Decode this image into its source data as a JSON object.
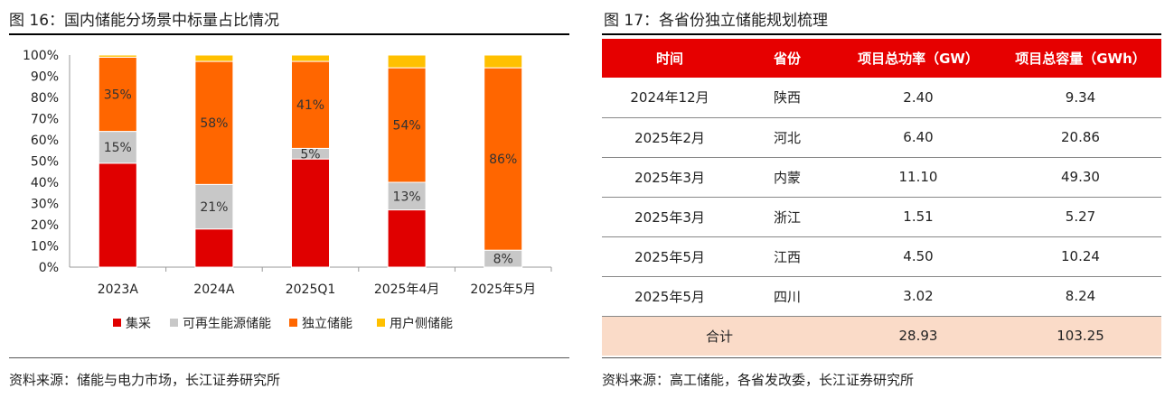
{
  "left_panel": {
    "title": "图 16：国内储能分场景中标量占比情况",
    "source": "资料来源：储能与电力市场，长江证券研究所"
  },
  "right_panel": {
    "title": "图 17：各省份独立储能规划梳理",
    "source": "资料来源：高工储能，各省发改委，长江证券研究所",
    "table": {
      "headers": [
        "时间",
        "省份",
        "项目总功率（GW）",
        "项目总容量（GWh）"
      ],
      "rows": [
        [
          "2024年12月",
          "陕西",
          "2.40",
          "9.34"
        ],
        [
          "2025年2月",
          "河北",
          "6.40",
          "20.86"
        ],
        [
          "2025年3月",
          "内蒙",
          "11.10",
          "49.30"
        ],
        [
          "2025年3月",
          "浙江",
          "1.51",
          "5.27"
        ],
        [
          "2025年5月",
          "江西",
          "4.50",
          "10.24"
        ],
        [
          "2025年5月",
          "四川",
          "3.02",
          "8.24"
        ]
      ],
      "total_row": [
        "合计",
        "",
        "28.93",
        "103.25"
      ]
    }
  },
  "chart_data": {
    "type": "bar",
    "stacked": true,
    "percent": true,
    "categories": [
      "2023A",
      "2024A",
      "2025Q1",
      "2025年4月",
      "2025年5月"
    ],
    "series": [
      {
        "name": "集采",
        "color": "#e00000",
        "values": [
          49,
          18,
          51,
          27,
          0
        ],
        "labels": [
          "",
          "",
          "",
          "",
          ""
        ]
      },
      {
        "name": "可再生能源储能",
        "color": "#c8c8c8",
        "values": [
          15,
          21,
          5,
          13,
          8
        ],
        "labels": [
          "15%",
          "21%",
          "5%",
          "13%",
          "8%"
        ]
      },
      {
        "name": "独立储能",
        "color": "#ff6600",
        "values": [
          35,
          58,
          41,
          54,
          86
        ],
        "labels": [
          "35%",
          "58%",
          "41%",
          "54%",
          "86%"
        ]
      },
      {
        "name": "用户侧储能",
        "color": "#ffc000",
        "values": [
          1,
          3,
          3,
          6,
          6
        ],
        "labels": [
          "",
          "",
          "",
          "",
          ""
        ]
      }
    ],
    "ylim": [
      0,
      100
    ],
    "yticks": [
      "0%",
      "10%",
      "20%",
      "30%",
      "40%",
      "50%",
      "60%",
      "70%",
      "80%",
      "90%",
      "100%"
    ],
    "legend_position": "bottom",
    "grid": false
  }
}
